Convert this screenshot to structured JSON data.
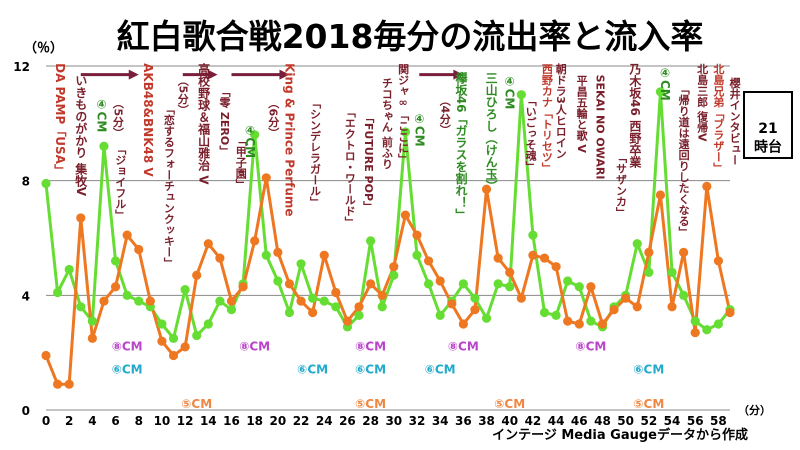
{
  "chart_data": {
    "type": "line",
    "title": "紅白歌合戦2018毎分の流出率と流入率",
    "ylabel": "（％）",
    "xlabel": "（分）",
    "hour_label": "21時台",
    "source": "インテージ Media Gaugeデータから作成",
    "x": [
      0,
      1,
      2,
      3,
      4,
      5,
      6,
      7,
      8,
      9,
      10,
      11,
      12,
      13,
      14,
      15,
      16,
      17,
      18,
      19,
      20,
      21,
      22,
      23,
      24,
      25,
      26,
      27,
      28,
      29,
      30,
      31,
      32,
      33,
      34,
      35,
      36,
      37,
      38,
      39,
      40,
      41,
      42,
      43,
      44,
      45,
      46,
      47,
      48,
      49,
      50,
      51,
      52,
      53,
      54,
      55,
      56,
      57,
      58,
      59
    ],
    "xlim": [
      0,
      59
    ],
    "ylim": [
      0,
      12
    ],
    "x_ticks": [
      0,
      2,
      4,
      6,
      8,
      10,
      12,
      14,
      16,
      18,
      20,
      22,
      24,
      26,
      28,
      30,
      32,
      34,
      36,
      38,
      40,
      42,
      44,
      46,
      48,
      50,
      52,
      54,
      56,
      58
    ],
    "y_ticks": [
      0,
      4,
      8,
      12
    ],
    "grid": "horizontal",
    "series": [
      {
        "key": "green",
        "color": "#66dd33",
        "values": [
          7.9,
          4.1,
          4.9,
          3.6,
          3.1,
          9.2,
          5.2,
          4.0,
          3.8,
          3.6,
          3.0,
          2.5,
          4.2,
          2.6,
          3.0,
          3.8,
          3.5,
          4.4,
          9.6,
          5.4,
          4.5,
          3.4,
          5.1,
          3.9,
          3.8,
          3.6,
          2.9,
          3.3,
          5.9,
          3.6,
          4.7,
          9.7,
          5.4,
          4.4,
          3.3,
          3.8,
          4.4,
          3.9,
          3.2,
          4.4,
          4.3,
          11.0,
          6.1,
          3.4,
          3.3,
          4.5,
          4.3,
          3.1,
          2.9,
          3.6,
          4.0,
          5.8,
          4.8,
          11.1,
          4.8,
          4.0,
          3.1,
          2.8,
          3.0,
          3.5
        ]
      },
      {
        "key": "orange",
        "color": "#ee7722",
        "values": [
          1.9,
          0.9,
          0.9,
          6.7,
          2.5,
          3.8,
          4.3,
          6.1,
          5.6,
          3.8,
          2.4,
          1.9,
          2.2,
          4.7,
          5.8,
          5.3,
          3.8,
          4.3,
          5.9,
          8.1,
          5.5,
          4.4,
          3.8,
          3.4,
          5.4,
          4.1,
          3.1,
          3.6,
          4.4,
          4.0,
          5.0,
          6.8,
          6.1,
          5.2,
          4.5,
          3.7,
          3.0,
          3.5,
          7.7,
          5.3,
          4.8,
          3.9,
          5.4,
          5.3,
          5.0,
          3.1,
          3.0,
          4.3,
          3.0,
          3.5,
          3.9,
          3.6,
          5.5,
          7.5,
          3.6,
          5.5,
          2.7,
          7.8,
          5.2,
          3.4
        ]
      }
    ],
    "annotations": [
      {
        "text": "DA PAMP「USA」",
        "x": 1.2,
        "top": 12.1,
        "color": "#c0392b",
        "size": 12
      },
      {
        "text": "いきものがかり 集牧V",
        "x": 3.0,
        "top": 11.7,
        "color": "#7a1f2b",
        "size": 12
      },
      {
        "text": "④CM",
        "x": 4.8,
        "top": 10.9,
        "color": "#2e8b22",
        "size": 12
      },
      {
        "text": "（5分）",
        "x": 6.2,
        "top": 10.9,
        "color": "#7a1f2b",
        "size": 11
      },
      {
        "text": "「ジョイフル」",
        "x": 6.4,
        "top": 9.3,
        "color": "#7a1f2b",
        "size": 11
      },
      {
        "text": "AKB48&BNK48 V",
        "x": 8.8,
        "top": 12.1,
        "color": "#c0392b",
        "size": 12
      },
      {
        "text": "（5分）",
        "x": 11.8,
        "top": 11.7,
        "color": "#7a1f2b",
        "size": 11
      },
      {
        "text": "「恋するフォーチュンクッキー」",
        "x": 10.6,
        "top": 10.7,
        "color": "#7a1f2b",
        "size": 11
      },
      {
        "text": "高校野球＆福山雅治 V",
        "x": 13.6,
        "top": 12.1,
        "color": "#7a1f2b",
        "size": 12
      },
      {
        "text": "「零 ZERO」",
        "x": 15.4,
        "top": 11.3,
        "color": "#7a1f2b",
        "size": 11
      },
      {
        "text": "「甲子園」",
        "x": 16.8,
        "top": 9.6,
        "color": "#7a1f2b",
        "size": 11
      },
      {
        "text": "④CM",
        "x": 17.6,
        "top": 10.0,
        "color": "#2e8b22",
        "size": 12
      },
      {
        "text": "（6分）",
        "x": 19.6,
        "top": 10.9,
        "color": "#7a1f2b",
        "size": 11
      },
      {
        "text": "King & Prince Perfume",
        "x": 21.0,
        "top": 12.1,
        "color": "#c0392b",
        "size": 12
      },
      {
        "text": "「シンデレラガール」",
        "x": 23.2,
        "top": 10.9,
        "color": "#7a1f2b",
        "size": 11
      },
      {
        "text": "「エクトロ・ワールド」",
        "x": 26.2,
        "top": 10.6,
        "color": "#7a1f2b",
        "size": 11
      },
      {
        "text": "「FUTURE POP」",
        "x": 27.8,
        "top": 10.4,
        "color": "#7a1f2b",
        "size": 11
      },
      {
        "text": "チコちゃん 前ふり",
        "x": 29.4,
        "top": 11.6,
        "color": "#7a1f2b",
        "size": 11
      },
      {
        "text": "関ジャ∞「ここに」",
        "x": 30.8,
        "top": 12.1,
        "color": "#7a1f2b",
        "size": 11
      },
      {
        "text": "④CM",
        "x": 32.2,
        "top": 10.4,
        "color": "#2e8b22",
        "size": 12
      },
      {
        "text": "（4分）",
        "x": 34.4,
        "top": 11.0,
        "color": "#7a1f2b",
        "size": 11
      },
      {
        "text": "欅坂46「ガラスを割れ！」",
        "x": 35.8,
        "top": 11.8,
        "color": "#2e8b22",
        "size": 12
      },
      {
        "text": "三山ひろし（けん玉）",
        "x": 38.4,
        "top": 11.8,
        "color": "#2e8b22",
        "size": 12
      },
      {
        "text": "④CM",
        "x": 40.0,
        "top": 11.7,
        "color": "#2e8b22",
        "size": 12
      },
      {
        "text": "「いごっそ魂」",
        "x": 41.8,
        "top": 11.0,
        "color": "#7a1f2b",
        "size": 11
      },
      {
        "text": "西野カナ「トリセツ」",
        "x": 43.2,
        "top": 12.1,
        "color": "#c0392b",
        "size": 11
      },
      {
        "text": "朝ドラ3人ヒロイン",
        "x": 44.4,
        "top": 12.1,
        "color": "#7a1f2b",
        "size": 11
      },
      {
        "text": "平昌五輪と歌 V",
        "x": 46.2,
        "top": 11.7,
        "color": "#7a1f2b",
        "size": 11
      },
      {
        "text": "SEKAI NO OWARI",
        "x": 47.8,
        "top": 11.7,
        "color": "#7a1f2b",
        "size": 11
      },
      {
        "text": "「サザンカ」",
        "x": 49.6,
        "top": 9.0,
        "color": "#7a1f2b",
        "size": 11
      },
      {
        "text": "乃木坂46 西野卒業",
        "x": 50.8,
        "top": 12.1,
        "color": "#7a1f2b",
        "size": 12
      },
      {
        "text": "④CM",
        "x": 53.4,
        "top": 12.0,
        "color": "#2e8b22",
        "size": 12
      },
      {
        "text": "「帰り道は遠回りしたくなる」",
        "x": 55.0,
        "top": 11.4,
        "color": "#7a1f2b",
        "size": 11
      },
      {
        "text": "北島三郎 復帰V",
        "x": 56.6,
        "top": 12.1,
        "color": "#7a1f2b",
        "size": 11
      },
      {
        "text": "北島兄弟「ブラザー」",
        "x": 58.0,
        "top": 12.1,
        "color": "#c0392b",
        "size": 11
      },
      {
        "text": "櫻井インタビュー",
        "x": 59.4,
        "top": 11.6,
        "color": "#7a1f2b",
        "size": 11
      }
    ],
    "arrows": [
      {
        "from": 3.0,
        "to": 8.0,
        "y": 11.7
      },
      {
        "from": 11.8,
        "to": 14.8,
        "y": 11.7
      },
      {
        "from": 16.0,
        "to": 21.0,
        "y": 11.7
      },
      {
        "from": 32.2,
        "to": 36.0,
        "y": 11.7
      }
    ],
    "cm_labels": [
      {
        "text": "⑧CM",
        "x": 7.0,
        "y": 2.0,
        "color": "#bb44cc"
      },
      {
        "text": "⑥CM",
        "x": 7.0,
        "y": 1.2,
        "color": "#22aacc"
      },
      {
        "text": "⑤CM",
        "x": 13.0,
        "y": 0.0,
        "color": "#ee8844"
      },
      {
        "text": "⑧CM",
        "x": 18.0,
        "y": 2.0,
        "color": "#bb44cc"
      },
      {
        "text": "⑥CM",
        "x": 23.0,
        "y": 1.2,
        "color": "#22aacc"
      },
      {
        "text": "⑧CM",
        "x": 28.0,
        "y": 2.0,
        "color": "#bb44cc"
      },
      {
        "text": "⑥CM",
        "x": 28.0,
        "y": 1.2,
        "color": "#22aacc"
      },
      {
        "text": "⑤CM",
        "x": 28.0,
        "y": 0.0,
        "color": "#ee8844"
      },
      {
        "text": "⑥CM",
        "x": 34.0,
        "y": 1.2,
        "color": "#22aacc"
      },
      {
        "text": "⑧CM",
        "x": 36.0,
        "y": 2.0,
        "color": "#bb44cc"
      },
      {
        "text": "⑤CM",
        "x": 40.0,
        "y": 0.0,
        "color": "#ee8844"
      },
      {
        "text": "⑧CM",
        "x": 47.0,
        "y": 2.0,
        "color": "#bb44cc"
      },
      {
        "text": "⑥CM",
        "x": 52.0,
        "y": 1.2,
        "color": "#22aacc"
      },
      {
        "text": "⑤CM",
        "x": 52.0,
        "y": 0.0,
        "color": "#ee8844"
      }
    ]
  }
}
